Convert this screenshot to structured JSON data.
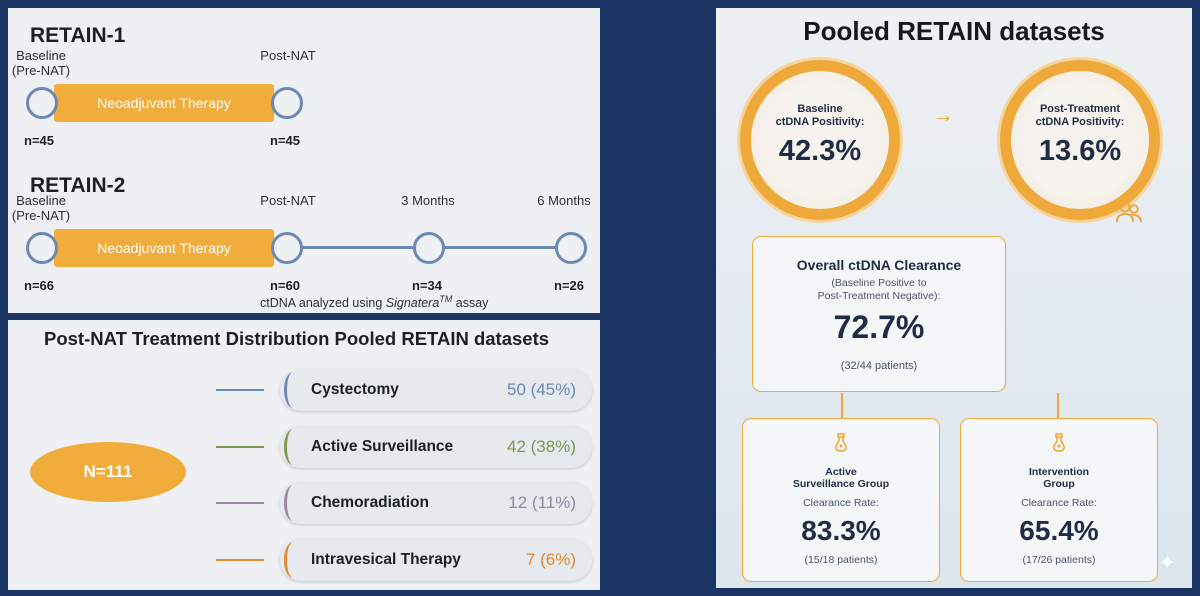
{
  "retain1": {
    "title": "RETAIN-1",
    "baseline_label": "Baseline\n(Pre-NAT)",
    "postnat_label": "Post-NAT",
    "therapy_label": "Neoadjuvant Therapy",
    "n_baseline": "n=45",
    "n_postnat": "n=45"
  },
  "retain2": {
    "title": "RETAIN-2",
    "baseline_label": "Baseline\n(Pre-NAT)",
    "postnat_label": "Post-NAT",
    "m3_label": "3 Months",
    "m6_label": "6 Months",
    "therapy_label": "Neoadjuvant Therapy",
    "n_baseline": "n=66",
    "n_postnat": "n=60",
    "n_m3": "n=34",
    "n_m6": "n=26",
    "assay_prefix": "ctDNA analyzed using ",
    "assay_name": "Signatera",
    "assay_tm": "TM",
    "assay_suffix": " assay"
  },
  "distribution": {
    "title": "Post-NAT Treatment Distribution Pooled RETAIN datasets",
    "total": "N=111",
    "items": [
      {
        "name": "Cystectomy",
        "value": "50 (45%)",
        "color": "#6b89b3"
      },
      {
        "name": "Active Surveillance",
        "value": "42 (38%)",
        "color": "#7b9a4f"
      },
      {
        "name": "Chemoradiation",
        "value": "12 (11%)",
        "color": "#9a84a8"
      },
      {
        "name": "Intravesical Therapy",
        "value": "7 (6%)",
        "color": "#e08a2e"
      }
    ]
  },
  "pooled": {
    "title": "Pooled RETAIN datasets",
    "baseline_label": "Baseline\nctDNA Positivity:",
    "baseline_value": "42.3%",
    "post_label": "Post-Treatment\nctDNA Positivity:",
    "post_value": "13.6%",
    "arrow": "→",
    "overall_title": "Overall ctDNA Clearance",
    "overall_sub": "(Baseline Positive to\nPost-Treatment Negative):",
    "overall_value": "72.7%",
    "overall_patients": "(32/44 patients)",
    "active_title": "Active\nSurveillance Group",
    "active_rate_label": "Clearance Rate:",
    "active_value": "83.3%",
    "active_patients": "(15/18 patients)",
    "intervention_title": "Intervention\nGroup",
    "intervention_rate_label": "Clearance Rate:",
    "intervention_value": "65.4%",
    "intervention_patients": "(17/26 patients)",
    "accent_color": "#efa93a",
    "navy_color": "#1f2c45"
  }
}
